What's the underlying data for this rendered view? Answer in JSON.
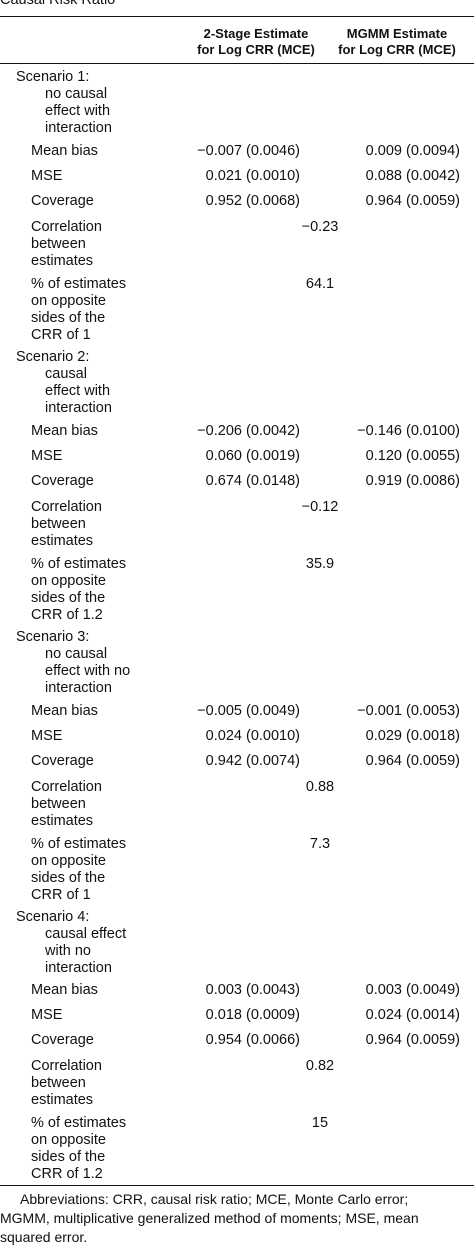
{
  "caption": "Causal Risk Ratio",
  "columns": {
    "col1": "2-Stage Estimate\nfor Log CRR (MCE)",
    "col2": "MGMM Estimate\nfor Log CRR (MCE)"
  },
  "scenarios": [
    {
      "title": "Scenario 1:",
      "subtitle": [
        "no causal",
        "effect with",
        "interaction"
      ],
      "mean_bias": [
        "−0.007 (0.0046)",
        "0.009 (0.0094)"
      ],
      "mse": [
        "0.021 (0.0010)",
        "0.088 (0.0042)"
      ],
      "coverage": [
        "0.952 (0.0068)",
        "0.964 (0.0059)"
      ],
      "correlation": "−0.23",
      "opposite_pct": "64.1",
      "opposite_label": "% of estimates\non opposite\nsides of the\nCRR of 1"
    },
    {
      "title": "Scenario 2:",
      "subtitle": [
        "causal",
        "effect with",
        "interaction"
      ],
      "mean_bias": [
        "−0.206 (0.0042)",
        "−0.146 (0.0100)"
      ],
      "mse": [
        "0.060 (0.0019)",
        "0.120 (0.0055)"
      ],
      "coverage": [
        "0.674 (0.0148)",
        "0.919 (0.0086)"
      ],
      "correlation": "−0.12",
      "opposite_pct": "35.9",
      "opposite_label": "% of estimates\non opposite\nsides of the\nCRR of 1.2"
    },
    {
      "title": "Scenario 3:",
      "subtitle": [
        "no causal",
        "effect with no",
        "interaction"
      ],
      "mean_bias": [
        "−0.005 (0.0049)",
        "−0.001 (0.0053)"
      ],
      "mse": [
        "0.024 (0.0010)",
        "0.029 (0.0018)"
      ],
      "coverage": [
        "0.942 (0.0074)",
        "0.964 (0.0059)"
      ],
      "correlation": "0.88",
      "opposite_pct": "7.3",
      "opposite_label": "% of estimates\non opposite\nsides of the\nCRR of 1"
    },
    {
      "title": "Scenario 4:",
      "subtitle": [
        "causal effect",
        "with no",
        "interaction"
      ],
      "mean_bias": [
        "0.003 (0.0043)",
        "0.003 (0.0049)"
      ],
      "mse": [
        "0.018 (0.0009)",
        "0.024 (0.0014)"
      ],
      "coverage": [
        "0.954 (0.0066)",
        "0.964 (0.0059)"
      ],
      "correlation": "0.82",
      "opposite_pct": "15",
      "opposite_label": "% of estimates\non opposite\nsides of the\nCRR of 1.2"
    }
  ],
  "row_labels": {
    "mean_bias": "Mean bias",
    "mse": "MSE",
    "coverage": "Coverage",
    "correlation": "Correlation\nbetween\nestimates"
  },
  "footnote": {
    "line1": "Abbreviations: CRR, causal risk ratio; MCE, Monte Carlo error;",
    "line2": "MGMM, multiplicative generalized method of moments; MSE, mean",
    "line3": "squared error."
  }
}
